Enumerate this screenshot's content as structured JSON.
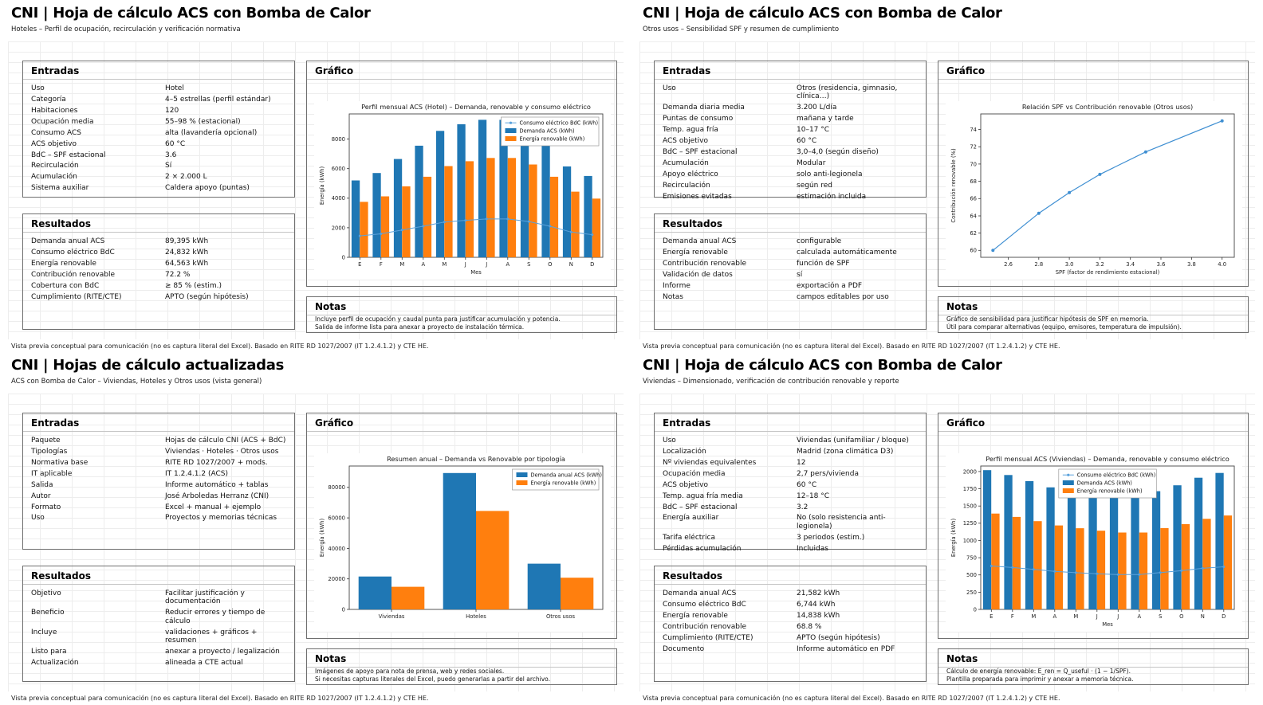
{
  "panels": [
    {
      "title": "CNI | Hoja de cálculo ACS con Bomba de Calor",
      "subtitle": "Hoteles – Perfil de ocupación, recirculación y verificación normativa",
      "entradas": {
        "heading": "Entradas",
        "rows": [
          {
            "label": "Uso",
            "value": "Hotel"
          },
          {
            "label": "Categoría",
            "value": "4–5 estrellas (perfil estándar)"
          },
          {
            "label": "Habitaciones",
            "value": "120"
          },
          {
            "label": "Ocupación media",
            "value": "55–98 % (estacional)"
          },
          {
            "label": "Consumo ACS",
            "value": "alta (lavandería opcional)"
          },
          {
            "label": "ACS objetivo",
            "value": "60 °C"
          },
          {
            "label": "BdC – SPF estacional",
            "value": "3.6"
          },
          {
            "label": "Recirculación",
            "value": "Sí"
          },
          {
            "label": "Acumulación",
            "value": "2 × 2.000 L"
          },
          {
            "label": "Sistema auxiliar",
            "value": "Caldera apoyo (puntas)"
          }
        ]
      },
      "resultados": {
        "heading": "Resultados",
        "rows": [
          {
            "label": "Demanda anual ACS",
            "value": "89,395 kWh"
          },
          {
            "label": "Consumo eléctrico BdC",
            "value": "24,832 kWh"
          },
          {
            "label": "Energía renovable",
            "value": "64,563 kWh"
          },
          {
            "label": "Contribución renovable",
            "value": "72.2 %"
          },
          {
            "label": "Cobertura con BdC",
            "value": "≥ 85 % (estim.)"
          },
          {
            "label": "Cumplimiento (RITE/CTE)",
            "value": "APTO (según hipótesis)"
          }
        ]
      },
      "grafico_heading": "Gráfico",
      "notas": {
        "heading": "Notas",
        "lines": [
          "Incluye perfil de ocupación y caudal punta para justificar acumulación y potencia.",
          "Salida de informe lista para anexar a proyecto de instalación térmica."
        ]
      },
      "footer": "Vista previa conceptual para comunicación (no es captura literal del Excel). Basado en RITE RD 1027/2007 (IT 1.2.4.1.2) y CTE HE."
    },
    {
      "title": "CNI | Hoja de cálculo ACS con Bomba de Calor",
      "subtitle": "Otros usos – Sensibilidad SPF y resumen de cumplimiento",
      "entradas": {
        "heading": "Entradas",
        "rows": [
          {
            "label": "Uso",
            "value": "Otros (residencia, gimnasio, clínica…)"
          },
          {
            "label": "Demanda diaria media",
            "value": "3.200 L/día"
          },
          {
            "label": "Puntas de consumo",
            "value": "mañana y tarde"
          },
          {
            "label": "Temp. agua fría",
            "value": "10–17 °C"
          },
          {
            "label": "ACS objetivo",
            "value": "60 °C"
          },
          {
            "label": "BdC – SPF estacional",
            "value": "3,0–4,0 (según diseño)"
          },
          {
            "label": "Acumulación",
            "value": "Modular"
          },
          {
            "label": "Apoyo eléctrico",
            "value": "solo anti-legionela"
          },
          {
            "label": "Recirculación",
            "value": "según red"
          },
          {
            "label": "Emisiones evitadas",
            "value": "estimación incluida"
          }
        ]
      },
      "resultados": {
        "heading": "Resultados",
        "rows": [
          {
            "label": "Demanda anual ACS",
            "value": "configurable"
          },
          {
            "label": "Energía renovable",
            "value": "calculada automáticamente"
          },
          {
            "label": "Contribución renovable",
            "value": "función de SPF"
          },
          {
            "label": "Validación de datos",
            "value": "sí"
          },
          {
            "label": "Informe",
            "value": "exportación a PDF"
          },
          {
            "label": "Notas",
            "value": "campos editables por uso"
          }
        ]
      },
      "grafico_heading": "Gráfico",
      "notas": {
        "heading": "Notas",
        "lines": [
          "Gráfico de sensibilidad para justificar hipótesis de SPF en memoria.",
          "Útil para comparar alternativas (equipo, emisores, temperatura de impulsión)."
        ]
      },
      "footer": "Vista previa conceptual para comunicación (no es captura literal del Excel). Basado en RITE RD 1027/2007 (IT 1.2.4.1.2) y CTE HE."
    },
    {
      "title": "CNI | Hojas de cálculo actualizadas",
      "subtitle": "ACS con Bomba de Calor – Viviendas, Hoteles y Otros usos (vista general)",
      "entradas": {
        "heading": "Entradas",
        "rows": [
          {
            "label": "Paquete",
            "value": "Hojas de cálculo CNI (ACS + BdC)"
          },
          {
            "label": "Tipologías",
            "value": "Viviendas · Hoteles · Otros usos"
          },
          {
            "label": "Normativa base",
            "value": "RITE RD 1027/2007 + mods."
          },
          {
            "label": "IT aplicable",
            "value": "IT 1.2.4.1.2 (ACS)"
          },
          {
            "label": "Salida",
            "value": "Informe automático + tablas"
          },
          {
            "label": "Autor",
            "value": "José Arboledas Herranz (CNI)"
          },
          {
            "label": "Formato",
            "value": "Excel + manual + ejemplo"
          },
          {
            "label": "Uso",
            "value": "Proyectos y memorias técnicas"
          }
        ]
      },
      "resultados": {
        "heading": "Resultados",
        "rows": [
          {
            "label": "Objetivo",
            "value": "Facilitar justificación y documentación"
          },
          {
            "label": "Beneficio",
            "value": "Reducir errores y tiempo de cálculo"
          },
          {
            "label": "Incluye",
            "value": "validaciones + gráficos + resumen"
          },
          {
            "label": "Listo para",
            "value": "anexar a proyecto / legalización"
          },
          {
            "label": "Actualización",
            "value": "alineada a CTE actual"
          }
        ]
      },
      "grafico_heading": "Gráfico",
      "notas": {
        "heading": "Notas",
        "lines": [
          "Imágenes de apoyo para nota de prensa, web y redes sociales.",
          "Si necesitas capturas literales del Excel, puedo generarlas a partir del archivo."
        ]
      },
      "footer": "Vista previa conceptual para comunicación (no es captura literal del Excel). Basado en RITE RD 1027/2007 (IT 1.2.4.1.2) y CTE HE."
    },
    {
      "title": "CNI | Hoja de cálculo ACS con Bomba de Calor",
      "subtitle": "Viviendas – Dimensionado, verificación de contribución renovable y reporte",
      "entradas": {
        "heading": "Entradas",
        "rows": [
          {
            "label": "Uso",
            "value": "Viviendas (unifamiliar / bloque)"
          },
          {
            "label": "Localización",
            "value": "Madrid (zona climática D3)"
          },
          {
            "label": "Nº viviendas equivalentes",
            "value": "12"
          },
          {
            "label": "Ocupación media",
            "value": "2,7 pers/vivienda"
          },
          {
            "label": "ACS objetivo",
            "value": "60 °C"
          },
          {
            "label": "Temp. agua fría media",
            "value": "12–18 °C"
          },
          {
            "label": "BdC – SPF estacional",
            "value": "3.2"
          },
          {
            "label": "Energía auxiliar",
            "value": "No (solo resistencia anti-legionela)"
          },
          {
            "label": "Tarifa eléctrica",
            "value": "3 periodos (estim.)"
          },
          {
            "label": "Pérdidas acumulación",
            "value": "Incluidas"
          }
        ]
      },
      "resultados": {
        "heading": "Resultados",
        "rows": [
          {
            "label": "Demanda anual ACS",
            "value": "21,582 kWh"
          },
          {
            "label": "Consumo eléctrico BdC",
            "value": "6,744 kWh"
          },
          {
            "label": "Energía renovable",
            "value": "14,838 kWh"
          },
          {
            "label": "Contribución renovable",
            "value": "68.8 %"
          },
          {
            "label": "Cumplimiento (RITE/CTE)",
            "value": "APTO (según hipótesis)"
          },
          {
            "label": "Documento",
            "value": "Informe automático en PDF"
          }
        ]
      },
      "grafico_heading": "Gráfico",
      "notas": {
        "heading": "Notas",
        "lines": [
          "Cálculo de energía renovable: E_ren = Q_useful · (1 − 1/SPF).",
          "Plantilla preparada para imprimir y anexar a memoria técnica."
        ]
      },
      "footer": "Vista previa conceptual para comunicación (no es captura literal del Excel). Basado en RITE RD 1027/2007 (IT 1.2.4.1.2) y CTE HE."
    }
  ],
  "colors": {
    "bar_demand": "#1f77b4",
    "bar_renewable": "#ff7f0e",
    "line_consumption": "#5aa2dc"
  },
  "chart_data": [
    {
      "type": "bar",
      "title": "Perfil mensual ACS (Hotel) – Demanda, renovable y consumo eléctrico",
      "categories": [
        "E",
        "F",
        "M",
        "A",
        "M",
        "J",
        "J",
        "A",
        "S",
        "O",
        "N",
        "D"
      ],
      "xlabel": "Mes",
      "ylabel": "Energía (kWh)",
      "ylim": [
        0,
        9700
      ],
      "yticks": [
        0,
        2000,
        4000,
        6000,
        8000
      ],
      "legend_pos": "top-right",
      "series": [
        {
          "name": "Consumo eléctrico BdC (kWh)",
          "style": "line",
          "color": "#5aa2dc",
          "values": [
            1450,
            1590,
            1850,
            2100,
            2380,
            2500,
            2590,
            2590,
            2420,
            2100,
            1710,
            1530
          ]
        },
        {
          "name": "Demanda ACS (kWh)",
          "style": "bar",
          "color": "#1f77b4",
          "values": [
            5200,
            5700,
            6650,
            7550,
            8550,
            9000,
            9300,
            9300,
            8700,
            7550,
            6150,
            5500
          ]
        },
        {
          "name": "Energía renovable (kWh)",
          "style": "bar",
          "color": "#ff7f0e",
          "values": [
            3750,
            4120,
            4800,
            5450,
            6170,
            6500,
            6720,
            6720,
            6280,
            5450,
            4440,
            3970
          ]
        }
      ]
    },
    {
      "type": "line",
      "title": "Relación SPF vs Contribución renovable (Otros usos)",
      "x": [
        2.5,
        2.8,
        3.0,
        3.2,
        3.5,
        4.0
      ],
      "y": [
        60.0,
        64.3,
        66.7,
        68.8,
        71.4,
        75.0
      ],
      "xlabel": "SPF (factor de rendimiento estacional)",
      "ylabel": "Contribución renovable (%)",
      "xlim": [
        2.42,
        4.08
      ],
      "ylim": [
        59.2,
        75.8
      ],
      "xticks": [
        2.6,
        2.8,
        3.0,
        3.2,
        3.4,
        3.6,
        3.8,
        4.0
      ],
      "yticks": [
        60,
        62,
        64,
        66,
        68,
        70,
        72,
        74
      ],
      "color": "#3f8fd2"
    },
    {
      "type": "bar",
      "title": "Resumen anual – Demanda vs Renovable por tipología",
      "categories": [
        "Viviendas",
        "Hoteles",
        "Otros usos"
      ],
      "xlabel": "",
      "ylabel": "Energía (kWh)",
      "ylim": [
        0,
        94000
      ],
      "yticks": [
        0,
        20000,
        40000,
        60000,
        80000
      ],
      "legend_pos": "top-right",
      "series": [
        {
          "name": "Demanda anual ACS (kWh)",
          "style": "bar",
          "color": "#1f77b4",
          "values": [
            21582,
            89395,
            30000
          ]
        },
        {
          "name": "Energía renovable (kWh)",
          "style": "bar",
          "color": "#ff7f0e",
          "values": [
            14838,
            64563,
            20800
          ]
        }
      ]
    },
    {
      "type": "bar",
      "title": "Perfil mensual ACS (Viviendas) – Demanda, renovable y consumo eléctrico",
      "categories": [
        "E",
        "F",
        "M",
        "A",
        "M",
        "J",
        "J",
        "A",
        "S",
        "O",
        "N",
        "D"
      ],
      "xlabel": "Mes",
      "ylabel": "Energía (kWh)",
      "ylim": [
        0,
        2080
      ],
      "yticks": [
        0,
        250,
        500,
        750,
        1000,
        1250,
        1500,
        1750,
        2000
      ],
      "legend_pos": "top-center",
      "series": [
        {
          "name": "Consumo eléctrico BdC (kWh)",
          "style": "line",
          "color": "#5aa2dc",
          "values": [
            630,
            608,
            580,
            552,
            533,
            518,
            505,
            505,
            535,
            562,
            596,
            618
          ]
        },
        {
          "name": "Demanda ACS (kWh)",
          "style": "bar",
          "color": "#1f77b4",
          "values": [
            2020,
            1950,
            1860,
            1770,
            1710,
            1660,
            1620,
            1620,
            1715,
            1800,
            1910,
            1980
          ]
        },
        {
          "name": "Energía renovable (kWh)",
          "style": "bar",
          "color": "#ff7f0e",
          "values": [
            1390,
            1342,
            1280,
            1218,
            1177,
            1142,
            1115,
            1115,
            1180,
            1238,
            1314,
            1362
          ]
        }
      ]
    }
  ]
}
